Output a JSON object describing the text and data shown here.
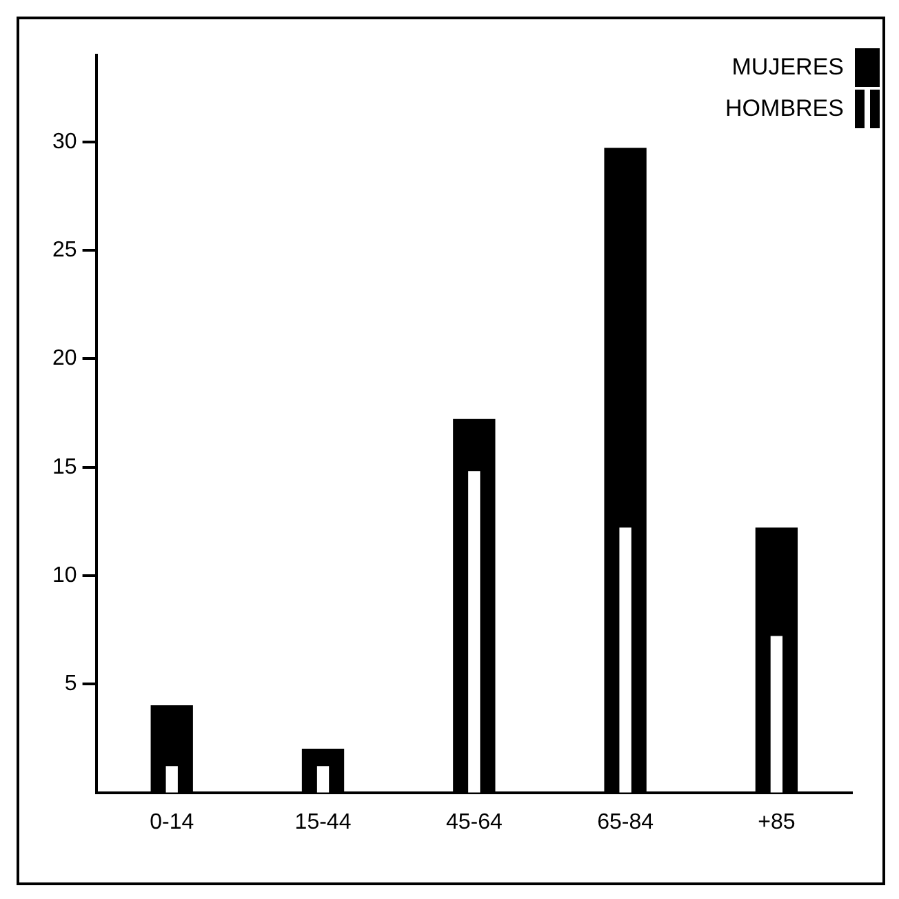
{
  "chart_data": {
    "type": "bar",
    "categories": [
      "0-14",
      "15-44",
      "45-64",
      "65-84",
      "+85"
    ],
    "series": [
      {
        "name": "MUJERES",
        "color": "#000000",
        "values": [
          4.0,
          2.0,
          17.2,
          29.7,
          12.2
        ]
      },
      {
        "name": "HOMBRES",
        "color": "#ffffff",
        "values": [
          1.2,
          1.2,
          14.8,
          12.2,
          7.2
        ]
      }
    ],
    "ylim": [
      0,
      34
    ],
    "yticks": [
      5,
      10,
      15,
      20,
      25,
      30
    ],
    "grid": false,
    "legend": "top right"
  }
}
